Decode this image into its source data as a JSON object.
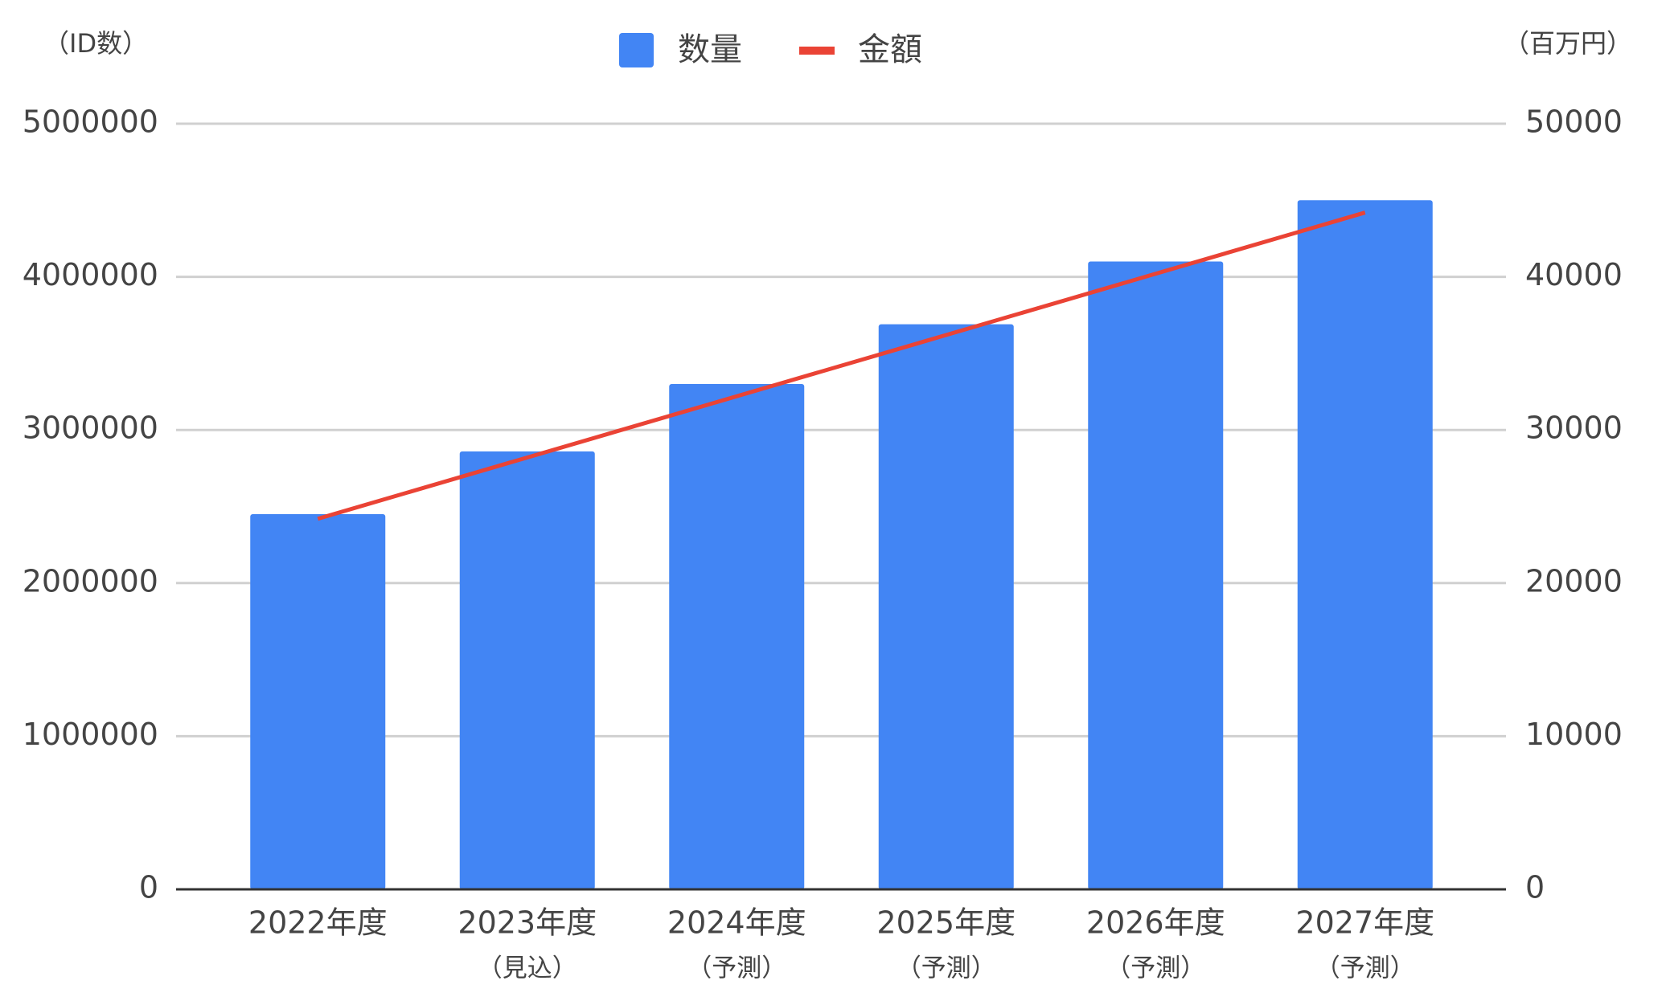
{
  "chart_data": {
    "type": "bar",
    "y_axis_title": "（ID数）",
    "y2_axis_title": "（百万円）",
    "categories": [
      "2022年度",
      "2023年度",
      "2024年度",
      "2025年度",
      "2026年度",
      "2027年度"
    ],
    "category_sublabels": [
      null,
      "（見込）",
      "（予測）",
      "（予測）",
      "（予測）",
      "（予測）"
    ],
    "series": [
      {
        "name": "数量",
        "type": "bar",
        "color": "#4285f4",
        "values": [
          2450000,
          2860000,
          3300000,
          3690000,
          4100000,
          4500000
        ]
      },
      {
        "name": "金額",
        "type": "line",
        "axis": "y2",
        "color": "#ea4335",
        "values": [
          24200,
          28200,
          32200,
          36200,
          40200,
          44200
        ]
      }
    ],
    "ylim": [
      0,
      5000000
    ],
    "yticks": [
      0,
      1000000,
      2000000,
      3000000,
      4000000,
      5000000
    ],
    "y2lim": [
      0,
      50000
    ],
    "y2ticks": [
      0,
      10000,
      20000,
      30000,
      40000,
      50000
    ],
    "grid": true,
    "legend": "top"
  }
}
